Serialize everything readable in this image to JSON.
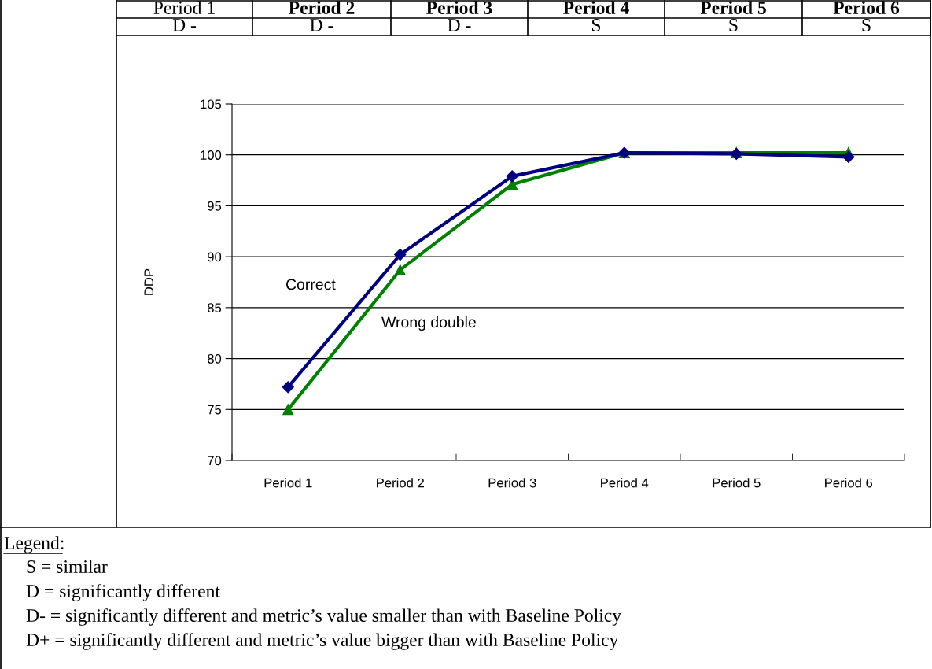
{
  "chart_data": {
    "type": "line",
    "ylabel": "DDP",
    "categories": [
      "Period 1",
      "Period 2",
      "Period 3",
      "Period 4",
      "Period 5",
      "Period 6"
    ],
    "series": [
      {
        "name": "Correct",
        "color": "#000080",
        "marker": "diamond",
        "values": [
          77.2,
          90.2,
          97.9,
          100.2,
          100.1,
          99.8
        ]
      },
      {
        "name": "Wrong double",
        "color": "#008000",
        "marker": "triangle",
        "values": [
          75.0,
          88.7,
          97.1,
          100.2,
          100.2,
          100.2
        ]
      }
    ],
    "ylim": [
      70,
      105
    ],
    "yticks": [
      70,
      75,
      80,
      85,
      90,
      95,
      100,
      105
    ],
    "grid": "y",
    "legend": false,
    "annotations": [
      "Period 1",
      "Period 2",
      "Period 3",
      "Period 4",
      "Period 5",
      "Period 6",
      "D -",
      "D -",
      "D -",
      "S",
      "S",
      "S",
      "Legend:",
      "S = similar",
      "D = significantly different",
      "D- = significantly different and metric’s value smaller than with Baseline Policy",
      "D+ = significantly different and metric’s value bigger than with Baseline Policy"
    ]
  }
}
